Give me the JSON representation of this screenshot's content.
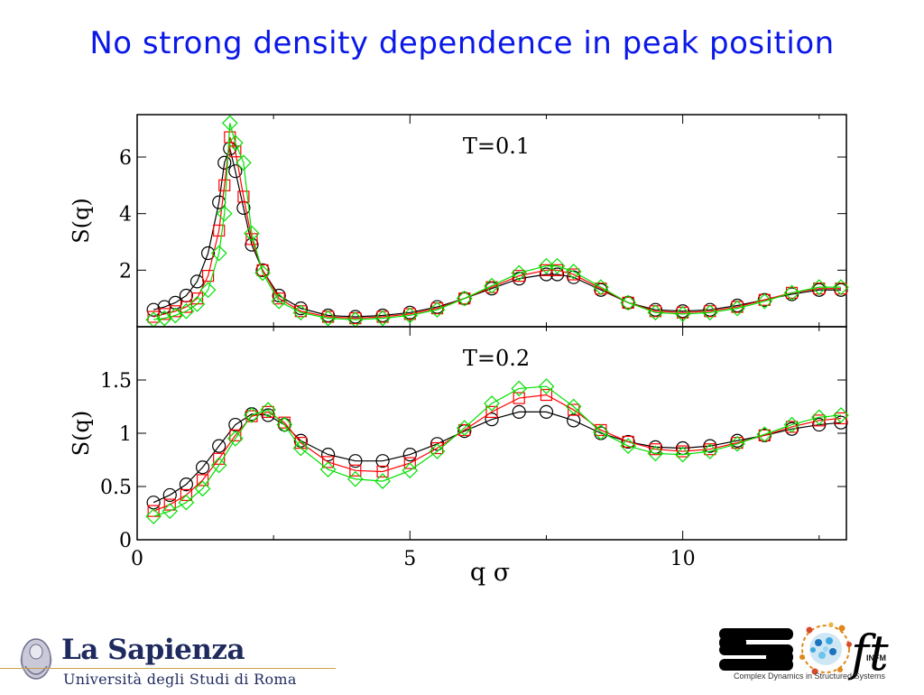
{
  "slide": {
    "title": "No strong density dependence in peak position"
  },
  "chart_data": [
    {
      "type": "scatter",
      "panel": "top",
      "annotation": "T=0.1",
      "ylabel": "S(q)",
      "xlabel": "q σ",
      "xlim": [
        0,
        13
      ],
      "ylim": [
        0,
        7.5
      ],
      "yticks": [
        "2",
        "4",
        "6"
      ],
      "ytick_values": [
        2,
        4,
        6
      ],
      "xticks": [
        "0",
        "5",
        "10"
      ],
      "xtick_values": [
        0,
        5,
        10
      ],
      "series": [
        {
          "marker": "circle",
          "color": "#000000",
          "x": [
            0.3,
            0.5,
            0.7,
            0.9,
            1.1,
            1.3,
            1.5,
            1.6,
            1.7,
            1.8,
            1.95,
            2.1,
            2.3,
            2.6,
            3.0,
            3.5,
            4.0,
            4.5,
            5.0,
            5.5,
            6.0,
            6.5,
            7.0,
            7.5,
            7.7,
            8.0,
            8.5,
            9.0,
            9.5,
            10.0,
            10.5,
            11.0,
            11.5,
            12.0,
            12.5,
            12.9
          ],
          "y": [
            0.6,
            0.7,
            0.85,
            1.1,
            1.6,
            2.6,
            4.4,
            5.8,
            6.3,
            5.5,
            4.2,
            2.9,
            2.0,
            1.1,
            0.65,
            0.4,
            0.35,
            0.4,
            0.5,
            0.7,
            1.0,
            1.35,
            1.7,
            1.85,
            1.85,
            1.75,
            1.3,
            0.85,
            0.6,
            0.55,
            0.6,
            0.75,
            0.95,
            1.15,
            1.3,
            1.3
          ]
        },
        {
          "marker": "square",
          "color": "#ff0000",
          "x": [
            0.3,
            0.5,
            0.7,
            0.9,
            1.1,
            1.3,
            1.5,
            1.6,
            1.7,
            1.8,
            1.95,
            2.1,
            2.3,
            2.6,
            3.0,
            3.5,
            4.0,
            4.5,
            5.0,
            5.5,
            6.0,
            6.5,
            7.0,
            7.5,
            7.7,
            8.0,
            8.5,
            9.0,
            9.5,
            10.0,
            10.5,
            11.0,
            11.5,
            12.0,
            12.5,
            12.9
          ],
          "y": [
            0.35,
            0.45,
            0.55,
            0.7,
            1.0,
            1.8,
            3.4,
            5.0,
            6.7,
            6.2,
            4.6,
            3.1,
            2.0,
            1.0,
            0.55,
            0.35,
            0.3,
            0.35,
            0.45,
            0.65,
            1.0,
            1.4,
            1.8,
            2.0,
            2.0,
            1.85,
            1.35,
            0.85,
            0.55,
            0.5,
            0.55,
            0.7,
            0.95,
            1.2,
            1.35,
            1.35
          ]
        },
        {
          "marker": "diamond",
          "color": "#00e000",
          "x": [
            0.3,
            0.5,
            0.7,
            0.9,
            1.1,
            1.3,
            1.5,
            1.6,
            1.7,
            1.8,
            1.95,
            2.1,
            2.3,
            2.6,
            3.0,
            3.5,
            4.0,
            4.5,
            5.0,
            5.5,
            6.0,
            6.5,
            7.0,
            7.5,
            7.7,
            8.0,
            8.5,
            9.0,
            9.5,
            10.0,
            10.5,
            11.0,
            11.5,
            12.0,
            12.5,
            12.9
          ],
          "y": [
            0.25,
            0.3,
            0.4,
            0.55,
            0.8,
            1.3,
            2.6,
            4.0,
            7.2,
            6.5,
            5.8,
            3.3,
            1.9,
            0.9,
            0.5,
            0.3,
            0.25,
            0.3,
            0.4,
            0.6,
            1.0,
            1.45,
            1.9,
            2.15,
            2.15,
            1.95,
            1.4,
            0.85,
            0.5,
            0.45,
            0.5,
            0.65,
            0.9,
            1.2,
            1.4,
            1.4
          ]
        }
      ]
    },
    {
      "type": "scatter",
      "panel": "bottom",
      "annotation": "T=0.2",
      "ylabel": "S(q)",
      "xlabel": "q σ",
      "xlim": [
        0,
        13
      ],
      "ylim": [
        0,
        2
      ],
      "yticks": [
        "0",
        "0.5",
        "1",
        "1.5"
      ],
      "ytick_values": [
        0,
        0.5,
        1,
        1.5
      ],
      "xticks": [
        "0",
        "5",
        "10"
      ],
      "xtick_values": [
        0,
        5,
        10
      ],
      "series": [
        {
          "marker": "circle",
          "color": "#000000",
          "x": [
            0.3,
            0.6,
            0.9,
            1.2,
            1.5,
            1.8,
            2.1,
            2.4,
            2.7,
            3.0,
            3.5,
            4.0,
            4.5,
            5.0,
            5.5,
            6.0,
            6.5,
            7.0,
            7.5,
            8.0,
            8.5,
            9.0,
            9.5,
            10.0,
            10.5,
            11.0,
            11.5,
            12.0,
            12.5,
            12.9
          ],
          "y": [
            0.35,
            0.42,
            0.52,
            0.68,
            0.88,
            1.08,
            1.18,
            1.17,
            1.08,
            0.93,
            0.8,
            0.74,
            0.74,
            0.8,
            0.9,
            1.02,
            1.13,
            1.2,
            1.2,
            1.12,
            1.0,
            0.92,
            0.87,
            0.86,
            0.88,
            0.93,
            0.98,
            1.04,
            1.08,
            1.1
          ]
        },
        {
          "marker": "square",
          "color": "#ff0000",
          "x": [
            0.3,
            0.6,
            0.9,
            1.2,
            1.5,
            1.8,
            2.1,
            2.4,
            2.7,
            3.0,
            3.5,
            4.0,
            4.5,
            5.0,
            5.5,
            6.0,
            6.5,
            7.0,
            7.5,
            8.0,
            8.5,
            9.0,
            9.5,
            10.0,
            10.5,
            11.0,
            11.5,
            12.0,
            12.5,
            12.9
          ],
          "y": [
            0.27,
            0.33,
            0.42,
            0.56,
            0.76,
            0.98,
            1.16,
            1.2,
            1.1,
            0.91,
            0.73,
            0.65,
            0.64,
            0.72,
            0.86,
            1.03,
            1.2,
            1.33,
            1.36,
            1.22,
            1.03,
            0.92,
            0.85,
            0.83,
            0.85,
            0.91,
            0.98,
            1.06,
            1.12,
            1.14
          ]
        },
        {
          "marker": "diamond",
          "color": "#00e000",
          "x": [
            0.3,
            0.6,
            0.9,
            1.2,
            1.5,
            1.8,
            2.1,
            2.4,
            2.7,
            3.0,
            3.5,
            4.0,
            4.5,
            5.0,
            5.5,
            6.0,
            6.5,
            7.0,
            7.5,
            8.0,
            8.5,
            9.0,
            9.5,
            10.0,
            10.5,
            11.0,
            11.5,
            12.0,
            12.5,
            12.9
          ],
          "y": [
            0.22,
            0.27,
            0.35,
            0.48,
            0.7,
            0.95,
            1.17,
            1.22,
            1.08,
            0.86,
            0.66,
            0.57,
            0.55,
            0.65,
            0.83,
            1.05,
            1.28,
            1.42,
            1.44,
            1.25,
            1.01,
            0.88,
            0.81,
            0.8,
            0.83,
            0.9,
            0.99,
            1.08,
            1.15,
            1.17
          ]
        }
      ]
    }
  ],
  "footer": {
    "university_name": "La Sapienza",
    "university_sub": "Università degli Studi di Roma",
    "soft_infm": "INFM",
    "soft_caption": "Complex Dynamics in Structured Systems",
    "soft_letters": "ft"
  }
}
